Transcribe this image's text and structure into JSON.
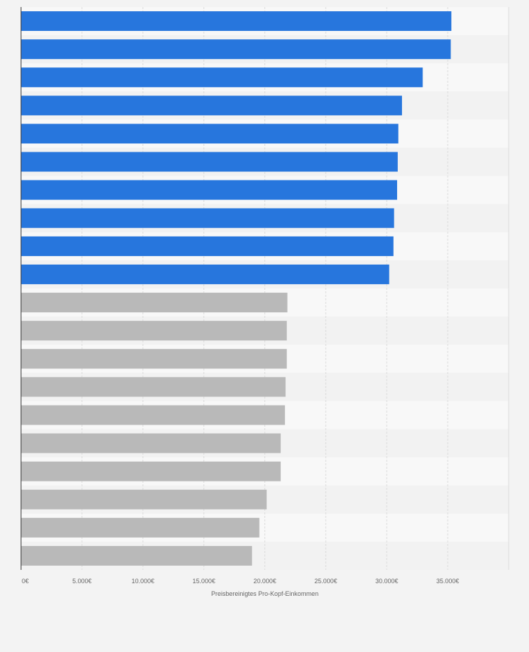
{
  "colors": {
    "highlight": "#2776dd",
    "default": "#b9b9b9",
    "band_light": "#f8f8f8",
    "band_dark": "#f2f2f2",
    "grid": "#dcdcdc",
    "axis": "#333333"
  },
  "chart_data": {
    "type": "bar",
    "orientation": "horizontal",
    "title": "",
    "xlabel": "Preisbereinigtes Pro-Kopf-Einkommen",
    "ylabel": "",
    "xlim": [
      0,
      40000
    ],
    "xticks": [
      0,
      5000,
      10000,
      15000,
      20000,
      25000,
      30000,
      35000
    ],
    "xtick_labels": [
      "0€",
      "5.000€",
      "10.000€",
      "15.000€",
      "20.000€",
      "25.000€",
      "30.000€",
      "35.000€"
    ],
    "categories": [
      "",
      "",
      "",
      "",
      "",
      "",
      "",
      "",
      "",
      "",
      "",
      "",
      "",
      "",
      "",
      "",
      "",
      "",
      "",
      ""
    ],
    "values": [
      35300,
      35250,
      32950,
      31250,
      30950,
      30900,
      30850,
      30600,
      30550,
      30200,
      21850,
      21800,
      21800,
      21700,
      21650,
      21300,
      21300,
      20150,
      19550,
      18950
    ],
    "bar_groups": [
      "top",
      "top",
      "top",
      "top",
      "top",
      "top",
      "top",
      "top",
      "top",
      "top",
      "bottom",
      "bottom",
      "bottom",
      "bottom",
      "bottom",
      "bottom",
      "bottom",
      "bottom",
      "bottom",
      "bottom"
    ],
    "grid": true,
    "legend": "none"
  }
}
